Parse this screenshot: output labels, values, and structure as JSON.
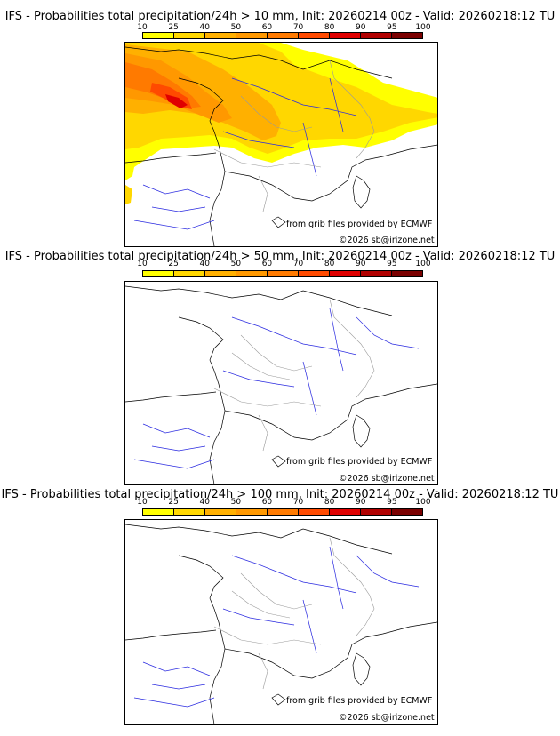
{
  "scale": {
    "ticks": [
      "10",
      "25",
      "40",
      "50",
      "60",
      "70",
      "80",
      "90",
      "95",
      "100"
    ],
    "colors": [
      "#ffff00",
      "#ffd700",
      "#ffb000",
      "#ff9800",
      "#ff7a00",
      "#ff4a00",
      "#e00000",
      "#b00000",
      "#7a0000"
    ]
  },
  "panels": [
    {
      "title": "IFS - Probabilities total precipitation/24h > 10 mm, Init: 20260214 00z - Valid: 20260218:12 TU",
      "threshold": "10 mm",
      "precip_field": true
    },
    {
      "title": "IFS - Probabilities total precipitation/24h > 50 mm, Init: 20260214 00z - Valid: 20260218:12 TU",
      "threshold": "50 mm",
      "precip_field": false
    },
    {
      "title": "IFS - Probabilities total precipitation/24h > 100 mm, Init: 20260214 00z - Valid: 20260218:12 TU",
      "threshold": "100 mm",
      "precip_field": false
    }
  ],
  "credit": "from grib files provided by ECMWF",
  "copyright": "©2026 sb@irizone.net",
  "colors": {
    "coast": "#000000",
    "rivers": "#2a2ae0",
    "borders": "#9a9a9a"
  }
}
